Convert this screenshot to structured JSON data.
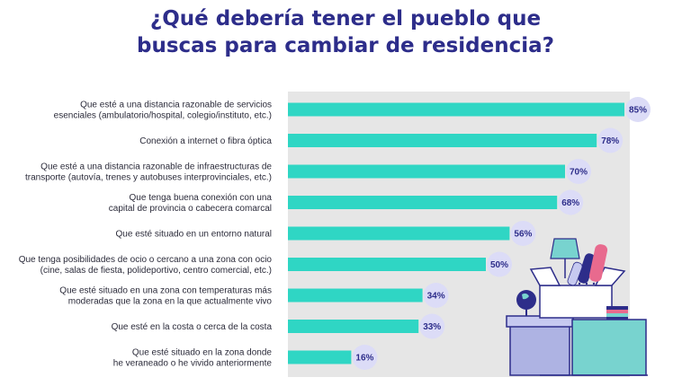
{
  "title_lines": [
    "¿Qué debería tener el pueblo que",
    "buscas para cambiar de residencia?"
  ],
  "colors": {
    "title": "#2d2d8a",
    "bar": "#2fd6c4",
    "track": "#e6e6e6",
    "badge": "#dcdcf7",
    "badge_text": "#2d2d8a",
    "label": "#2b2b3a"
  },
  "illustration": {
    "icons": [
      "open-box-icon",
      "lamp-icon",
      "globe-icon",
      "rolled-poster-icon",
      "books-icon",
      "storage-box-icon"
    ]
  },
  "chart_data": {
    "type": "bar",
    "orientation": "horizontal",
    "title": "¿Qué debería tener el pueblo que buscas para cambiar de residencia?",
    "xlabel": "",
    "ylabel": "",
    "xlim": [
      0,
      100
    ],
    "grid": false,
    "unit": "%",
    "categories": [
      [
        "Que esté a una distancia razonable de servicios",
        "esenciales (ambulatorio/hospital, colegio/instituto, etc.)"
      ],
      [
        "Conexión a internet o fibra óptica"
      ],
      [
        "Que esté a una distancia razonable de infraestructuras de",
        "transporte (autovía, trenes y autobuses interprovinciales, etc.)"
      ],
      [
        "Que tenga buena conexión con una",
        "capital de provincia o cabecera comarcal"
      ],
      [
        "Que esté situado en un entorno natural"
      ],
      [
        "Que tenga posibilidades de ocio o cercano a una zona con ocio",
        "(cine, salas de fiesta, polideportivo, centro comercial, etc.)"
      ],
      [
        "Que esté situado en una zona con temperaturas más",
        "moderadas que la zona en la que actualmente vivo"
      ],
      [
        "Que esté en la costa o cerca de la costa"
      ],
      [
        "Que esté situado en la zona donde",
        "he veraneado o he vivido anteriormente"
      ]
    ],
    "values": [
      85,
      78,
      70,
      68,
      56,
      50,
      34,
      33,
      16
    ],
    "value_labels": [
      "85%",
      "78%",
      "70%",
      "68%",
      "56%",
      "50%",
      "34%",
      "33%",
      "16%"
    ]
  }
}
